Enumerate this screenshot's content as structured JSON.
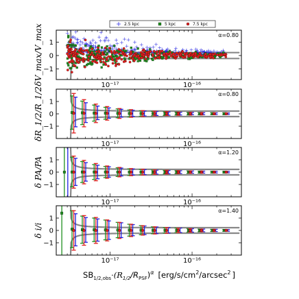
{
  "colors": {
    "blue": "#1f1fe0",
    "green": "#1f8f1f",
    "red": "#e01f1f",
    "envelope": "#888888",
    "frame": "#000000"
  },
  "legend": [
    {
      "label": "2.5 kpc",
      "color": "#1f1fe0",
      "marker": "plus"
    },
    {
      "label": "5 kpc",
      "color": "#1f8f1f",
      "marker": "square"
    },
    {
      "label": "7.5 kpc",
      "color": "#e01f1f",
      "marker": "circle"
    }
  ],
  "xlabel": {
    "main": "SB",
    "sub": "1/2,obs",
    "mid": "·(R",
    "sub2": "1/2",
    "slash": "/R",
    "sub3": "PSF",
    "close": ")",
    "sup": "α",
    "units": "[erg/s/cm",
    "units_sup": "2",
    "units_end": "/arcsec",
    "units_sup2": "2",
    "units_close": "]"
  },
  "chart_data": [
    {
      "type": "scatter",
      "ylabel": "δV_max/V_max",
      "annotation": "α=0.80",
      "xscale": "log",
      "xlim": [
        2.2e-18,
        4e-16
      ],
      "ylim": [
        -1.8,
        1.9
      ],
      "yticks": [
        -1,
        0,
        1
      ],
      "xticks": [
        {
          "value": 1e-17,
          "label": "10⁻¹⁷"
        },
        {
          "value": 1e-16,
          "label": "10⁻¹⁶"
        }
      ],
      "envelope": {
        "x0": 3.2e-18,
        "amplitude": 0.22,
        "xmax": 3.8e-16
      },
      "cloud": {
        "xmin": 3e-18,
        "xmax": 2.6e-16
      },
      "legend_position": "top"
    },
    {
      "type": "errorbar",
      "ylabel": "δR_1/2/R_1/2",
      "annotation": "α=0.80",
      "xscale": "log",
      "xlim": [
        2.2e-18,
        4e-16
      ],
      "ylim": [
        -2.0,
        2.0
      ],
      "yticks": [
        -1,
        0,
        1
      ],
      "xticks": [
        {
          "value": 1e-17,
          "label": "10⁻¹⁷"
        },
        {
          "value": 1e-16,
          "label": "10⁻¹⁶"
        }
      ],
      "envelope": {
        "x0": 3.2e-18,
        "amplitude": 0.22,
        "xmax": 3.8e-16
      },
      "x": [
        3.6e-18,
        4.8e-18,
        6.7e-18,
        9.2e-18,
        1.3e-17,
        1.8e-17,
        2.5e-17,
        3.5e-17,
        4.9e-17,
        6.8e-17,
        9.5e-17,
        1.3e-16,
        1.85e-16,
        2.6e-16
      ],
      "series": [
        {
          "name": "2.5 kpc",
          "color": "#1f1fe0",
          "y": [
            0.15,
            0.1,
            0.08,
            0.06,
            0.05,
            0.04,
            0.03,
            0.03,
            0.02,
            0.02,
            0.02,
            0.01,
            0.01,
            0.01
          ],
          "err": [
            1.2,
            0.8,
            0.55,
            0.42,
            0.32,
            0.25,
            0.2,
            0.16,
            0.13,
            0.11,
            0.09,
            0.08,
            0.07,
            0.06
          ]
        },
        {
          "name": "5 kpc",
          "color": "#1f8f1f",
          "y": [
            0.1,
            0.08,
            0.06,
            0.05,
            0.04,
            0.03,
            0.03,
            0.02,
            0.02,
            0.02,
            0.01,
            0.01,
            0.01,
            0.01
          ],
          "err": [
            1.35,
            0.95,
            0.65,
            0.48,
            0.36,
            0.28,
            0.22,
            0.18,
            0.15,
            0.12,
            0.1,
            0.09,
            0.08,
            0.07
          ]
        },
        {
          "name": "7.5 kpc",
          "color": "#e01f1f",
          "y": [
            0.05,
            0.05,
            0.04,
            0.04,
            0.03,
            0.03,
            0.02,
            0.02,
            0.02,
            0.01,
            0.01,
            0.01,
            0.01,
            0.01
          ],
          "err": [
            1.6,
            1.1,
            0.75,
            0.55,
            0.4,
            0.31,
            0.24,
            0.19,
            0.16,
            0.13,
            0.11,
            0.1,
            0.08,
            0.07
          ]
        }
      ]
    },
    {
      "type": "errorbar",
      "ylabel": "δ PA/PA",
      "annotation": "α=1.20",
      "xscale": "log",
      "xlim": [
        2.2e-18,
        4e-16
      ],
      "ylim": [
        -2.0,
        2.0
      ],
      "yticks": [
        -1,
        0,
        1
      ],
      "xticks": [
        {
          "value": 1e-17,
          "label": "10⁻¹⁷"
        },
        {
          "value": 1e-16,
          "label": "10⁻¹⁶"
        }
      ],
      "envelope": {
        "x0": 3.2e-18,
        "amplitude": 0.22,
        "xmax": 3.8e-16
      },
      "x": [
        2.9e-18,
        3.6e-18,
        4.8e-18,
        6.7e-18,
        9.2e-18,
        1.3e-17,
        1.8e-17,
        2.5e-17,
        3.5e-17,
        4.9e-17,
        6.8e-17,
        9.5e-17,
        1.3e-16,
        1.85e-16,
        2.6e-16
      ],
      "series": [
        {
          "name": "2.5 kpc",
          "color": "#1f1fe0",
          "y": [
            0.0,
            0.02,
            0.02,
            0.01,
            0.01,
            0.01,
            0.01,
            0.0,
            0.0,
            0.0,
            0.0,
            0.0,
            0.0,
            0.0,
            0.0
          ],
          "err": [
            4.0,
            1.1,
            0.75,
            0.55,
            0.42,
            0.32,
            0.25,
            0.2,
            0.16,
            0.13,
            0.11,
            0.09,
            0.08,
            0.07,
            0.06
          ]
        },
        {
          "name": "5 kpc",
          "color": "#1f8f1f",
          "y": [
            0.0,
            0.01,
            0.01,
            0.01,
            0.01,
            0.0,
            0.0,
            0.0,
            0.0,
            0.0,
            0.0,
            0.0,
            0.0,
            0.0,
            0.0
          ],
          "err": [
            2.2,
            1.2,
            0.85,
            0.6,
            0.45,
            0.35,
            0.27,
            0.21,
            0.17,
            0.14,
            0.12,
            0.1,
            0.08,
            0.07,
            0.06
          ]
        },
        {
          "name": "7.5 kpc",
          "color": "#e01f1f",
          "y": [
            0.0,
            0.0,
            0.0,
            0.0,
            0.0,
            0.0,
            0.0,
            0.0,
            0.0,
            0.0,
            0.0,
            0.0,
            0.0,
            0.0,
            0.0
          ],
          "err": [
            0.0,
            1.3,
            0.95,
            0.7,
            0.5,
            0.38,
            0.29,
            0.23,
            0.18,
            0.15,
            0.12,
            0.1,
            0.09,
            0.08,
            0.07
          ]
        }
      ]
    },
    {
      "type": "errorbar",
      "ylabel": "δ i/i",
      "annotation": "α=1.40",
      "xscale": "log",
      "xlim": [
        2.2e-18,
        4e-16
      ],
      "ylim": [
        -2.0,
        2.0
      ],
      "yticks": [
        -1,
        0,
        1
      ],
      "xticks": [
        {
          "value": 1e-17,
          "label": "10⁻¹⁷"
        },
        {
          "value": 1e-16,
          "label": "10⁻¹⁶"
        }
      ],
      "envelope": {
        "x0": 3.2e-18,
        "amplitude": 0.22,
        "xmax": 3.8e-16
      },
      "x": [
        2.7e-18,
        3.6e-18,
        4.8e-18,
        6.7e-18,
        9.2e-18,
        1.3e-17,
        1.8e-17,
        2.5e-17,
        3.5e-17,
        4.9e-17,
        6.8e-17,
        9.5e-17,
        1.3e-16,
        1.85e-16,
        2.6e-16
      ],
      "series": [
        {
          "name": "2.5 kpc",
          "color": "#1f1fe0",
          "y": [
            0.0,
            0.05,
            0.04,
            0.03,
            0.02,
            0.02,
            0.02,
            0.01,
            0.01,
            0.01,
            0.01,
            0.0,
            0.0,
            0.0,
            0.0
          ],
          "err": [
            0.0,
            1.3,
            1.0,
            0.9,
            0.75,
            0.6,
            0.45,
            0.35,
            0.27,
            0.22,
            0.18,
            0.14,
            0.11,
            0.09,
            0.07
          ]
        },
        {
          "name": "5 kpc",
          "color": "#1f8f1f",
          "y": [
            1.4,
            0.1,
            0.06,
            0.05,
            0.04,
            0.03,
            0.02,
            0.02,
            0.01,
            0.01,
            0.01,
            0.0,
            0.0,
            0.0,
            0.0
          ],
          "err": [
            3.5,
            1.5,
            1.1,
            0.95,
            0.8,
            0.62,
            0.48,
            0.37,
            0.28,
            0.22,
            0.18,
            0.14,
            0.11,
            0.09,
            0.07
          ]
        },
        {
          "name": "7.5 kpc",
          "color": "#e01f1f",
          "y": [
            0.0,
            0.0,
            0.0,
            0.0,
            0.0,
            0.0,
            0.0,
            0.0,
            0.0,
            0.0,
            0.0,
            0.0,
            0.0,
            0.0,
            0.0
          ],
          "err": [
            0.0,
            1.6,
            1.2,
            1.05,
            0.85,
            0.65,
            0.5,
            0.38,
            0.29,
            0.23,
            0.18,
            0.14,
            0.11,
            0.09,
            0.07
          ]
        }
      ]
    }
  ]
}
